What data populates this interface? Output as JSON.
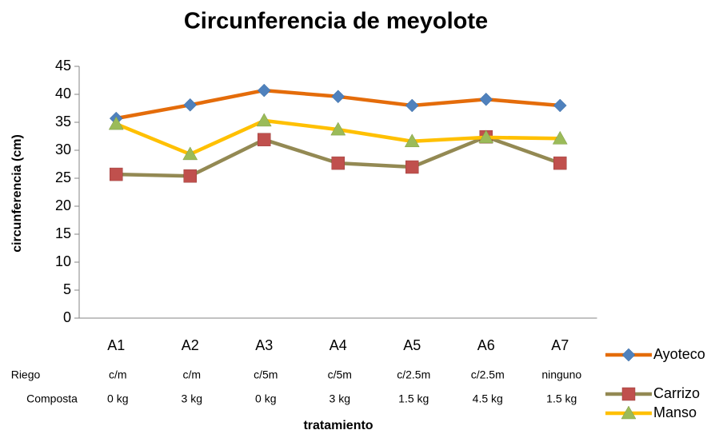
{
  "chart_data": {
    "type": "line",
    "title": "Circunferencia de meyolote",
    "x_label": "tratamiento",
    "y_label": "circunferencia (cm)",
    "categories": [
      "A1",
      "A2",
      "A3",
      "A4",
      "A5",
      "A6",
      "A7"
    ],
    "extra_rows": [
      {
        "name": "Riego",
        "labels": [
          "c/m",
          "c/m",
          "c/5m",
          "c/5m",
          "c/2.5m",
          "c/2.5m",
          "ninguno"
        ]
      },
      {
        "name": "Composta",
        "labels": [
          "0 kg",
          "3 kg",
          "0 kg",
          "3 kg",
          "1.5 kg",
          "4.5 kg",
          "1.5 kg"
        ]
      }
    ],
    "series": [
      {
        "name": "Ayoteco",
        "color": "#E46C0A",
        "marker_color": "#4F81BD",
        "marker": "diamond",
        "values": [
          35.7,
          38.1,
          40.7,
          39.6,
          38,
          39.1,
          38
        ]
      },
      {
        "name": "Carrizo",
        "color": "#938953",
        "marker_color": "#C0504D",
        "marker": "square",
        "values": [
          25.7,
          25.4,
          31.9,
          27.7,
          27,
          32.4,
          27.7
        ]
      },
      {
        "name": "Manso",
        "color": "#FFC000",
        "marker_color": "#9BBB59",
        "marker": "triangle",
        "values": [
          34.7,
          29.3,
          35.3,
          33.7,
          31.6,
          32.3,
          32.1
        ]
      }
    ],
    "ylim": [
      0,
      45
    ],
    "yticks": [
      0,
      5,
      10,
      15,
      20,
      25,
      30,
      35,
      40,
      45
    ],
    "grid": false,
    "legend": "right"
  }
}
